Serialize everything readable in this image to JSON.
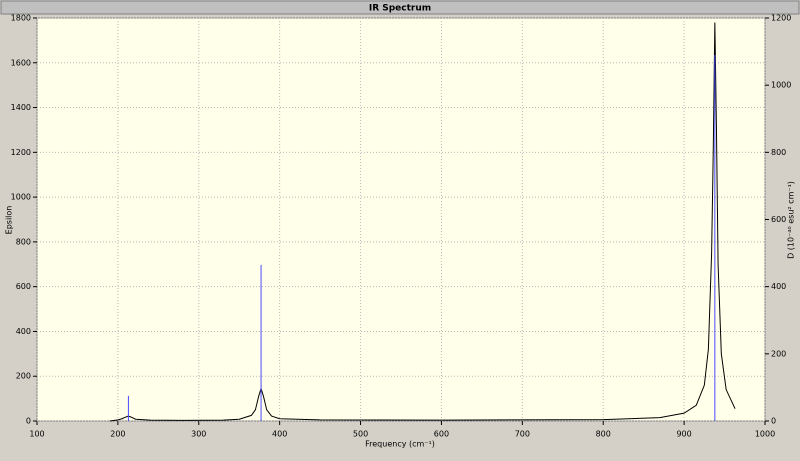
{
  "chart_data": {
    "type": "line",
    "title": "IR Spectrum",
    "x_label": "Frequency (cm⁻¹)",
    "y_label": "Epsilon",
    "y2_label": "D (10⁻⁴⁰ esu² cm⁻¹)",
    "xlim": [
      100,
      1000
    ],
    "xticks": [
      100,
      200,
      300,
      400,
      500,
      600,
      700,
      800,
      900,
      1000
    ],
    "ylim": [
      0,
      1800
    ],
    "yticks": [
      0,
      200,
      400,
      600,
      800,
      1000,
      1200,
      1400,
      1600,
      1800
    ],
    "y2lim": [
      0,
      1200
    ],
    "y2ticks": [
      0,
      200,
      400,
      600,
      800,
      1000,
      1200
    ],
    "grid": true,
    "series": [
      {
        "color": "#000000",
        "x": [
          190,
          200,
          205,
          210,
          213,
          216,
          222,
          240,
          280,
          330,
          350,
          365,
          370,
          374,
          377,
          380,
          384,
          390,
          400,
          450,
          600,
          800,
          870,
          900,
          915,
          925,
          930,
          934,
          936,
          938,
          940,
          942,
          946,
          952,
          963
        ],
        "values": [
          0,
          5,
          10,
          18,
          22,
          18,
          8,
          4,
          3,
          4,
          8,
          25,
          50,
          110,
          145,
          110,
          50,
          22,
          10,
          5,
          4,
          6,
          15,
          35,
          70,
          160,
          320,
          750,
          1200,
          1780,
          1300,
          700,
          300,
          140,
          55
        ]
      },
      {
        "type": "stick",
        "axis": "y2",
        "color": "#4a4aff",
        "x": [
          213,
          377,
          938
        ],
        "values": [
          75,
          465,
          1090
        ]
      }
    ]
  }
}
